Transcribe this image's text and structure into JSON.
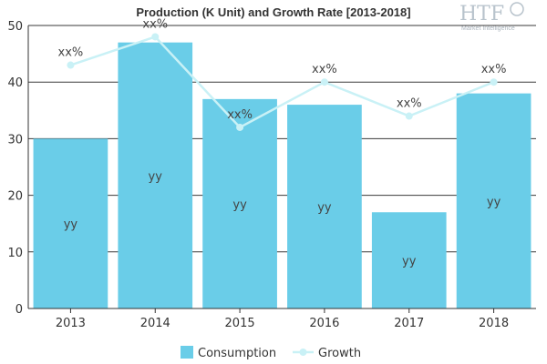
{
  "chart_data": {
    "type": "bar",
    "title": "Production (K Unit) and Growth Rate [2013-2018]",
    "categories": [
      "2013",
      "2014",
      "2015",
      "2016",
      "2017",
      "2018"
    ],
    "series": [
      {
        "name": "Consumption",
        "type": "bar",
        "values": [
          30,
          47,
          37,
          36,
          17,
          38
        ],
        "labels": [
          "yy",
          "yy",
          "yy",
          "yy",
          "yy",
          "yy"
        ],
        "color": "#6acde8"
      },
      {
        "name": "Growth",
        "type": "line",
        "values": [
          43,
          48,
          32,
          40,
          34,
          40
        ],
        "labels": [
          "xx%",
          "xx%",
          "xx%",
          "xx%",
          "xx%",
          "xx%"
        ],
        "color": "#c9f1f6"
      }
    ],
    "ylim": [
      0,
      50
    ],
    "yticks": [
      0,
      10,
      20,
      30,
      40,
      50
    ],
    "grid": true,
    "legend": "bottom-center"
  },
  "watermark": {
    "brand": "HTF",
    "sub": "Market Intelligence"
  }
}
